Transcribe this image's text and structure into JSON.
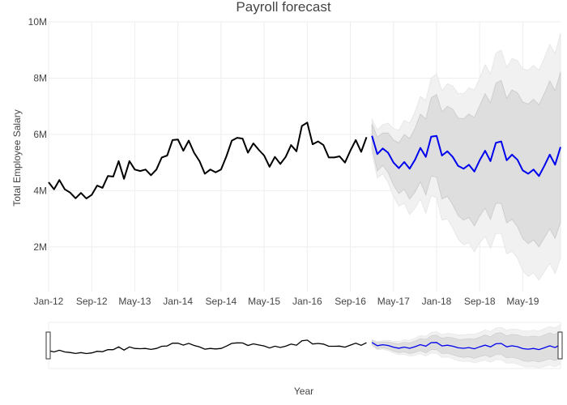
{
  "chart_data": {
    "type": "line",
    "title": "Payroll forecast",
    "xlabel": "Year",
    "ylabel": "Total Employee Salary",
    "x_ticks": [
      "Jan-12",
      "Sep-12",
      "May-13",
      "Jan-14",
      "Sep-14",
      "May-15",
      "Jan-16",
      "Sep-16",
      "May-17",
      "Jan-18",
      "Sep-18",
      "May-19"
    ],
    "y_ticks": [
      "2M",
      "4M",
      "6M",
      "8M",
      "10M"
    ],
    "ylim": [
      0.7,
      10
    ],
    "x_start": "2012-01",
    "grid": true,
    "range_slider": true,
    "colors": {
      "actual": "#000000",
      "forecast": "#0000ee",
      "band_inner": "#dedede",
      "band_outer": "#f1f1f1"
    },
    "series": [
      {
        "role": "actual",
        "values": [
          4.3,
          4.05,
          4.38,
          4.05,
          3.93,
          3.73,
          3.92,
          3.72,
          3.85,
          4.18,
          4.1,
          4.52,
          4.5,
          5.05,
          4.42,
          5.05,
          4.75,
          4.7,
          4.75,
          4.55,
          4.75,
          5.18,
          5.25,
          5.8,
          5.82,
          5.42,
          5.78,
          5.35,
          5.05,
          4.6,
          4.75,
          4.65,
          4.75,
          5.22,
          5.78,
          5.88,
          5.85,
          5.35,
          5.68,
          5.45,
          5.25,
          4.85,
          5.2,
          4.95,
          5.2,
          5.62,
          5.4,
          6.3,
          6.42,
          5.65,
          5.75,
          5.62,
          5.18,
          5.18,
          5.22,
          5.0,
          5.42,
          5.8,
          5.38,
          5.9
        ]
      },
      {
        "role": "forecast",
        "values": [
          5.95,
          5.3,
          5.5,
          5.35,
          5.0,
          4.8,
          5.02,
          4.78,
          5.1,
          5.52,
          5.2,
          5.92,
          5.95,
          5.25,
          5.4,
          5.2,
          4.88,
          4.78,
          4.92,
          4.68,
          5.08,
          5.42,
          5.05,
          5.7,
          5.75,
          5.08,
          5.28,
          5.1,
          4.72,
          4.6,
          4.75,
          4.52,
          4.88,
          5.28,
          4.92,
          5.55
        ],
        "band_inner_upper": [
          6.38,
          5.9,
          6.05,
          6.05,
          5.8,
          5.7,
          6.0,
          5.85,
          6.22,
          6.72,
          6.55,
          7.3,
          7.42,
          6.8,
          7.0,
          6.9,
          6.58,
          6.55,
          6.72,
          6.6,
          7.02,
          7.45,
          7.12,
          7.82,
          7.92,
          7.28,
          7.58,
          7.48,
          7.15,
          7.08,
          7.25,
          7.05,
          7.45,
          7.9,
          7.55,
          8.22
        ],
        "band_inner_lower": [
          5.55,
          4.7,
          4.9,
          4.65,
          4.2,
          3.9,
          4.05,
          3.7,
          3.95,
          4.32,
          3.85,
          4.52,
          4.48,
          3.7,
          3.8,
          3.5,
          3.12,
          2.95,
          3.05,
          2.75,
          3.1,
          3.38,
          2.98,
          3.55,
          3.55,
          2.85,
          2.98,
          2.72,
          2.3,
          2.12,
          2.25,
          2.0,
          2.32,
          2.65,
          2.3,
          2.88
        ],
        "band_outer_upper": [
          6.55,
          6.15,
          6.35,
          6.4,
          6.2,
          6.15,
          6.5,
          6.4,
          6.8,
          7.35,
          7.2,
          8.0,
          8.15,
          7.55,
          7.8,
          7.72,
          7.45,
          7.45,
          7.65,
          7.58,
          8.0,
          8.48,
          8.15,
          8.88,
          9.0,
          8.38,
          8.7,
          8.62,
          8.32,
          8.28,
          8.45,
          8.28,
          8.72,
          9.2,
          8.88,
          9.6
        ],
        "band_outer_lower": [
          5.35,
          4.45,
          4.6,
          4.3,
          3.8,
          3.45,
          3.55,
          3.15,
          3.38,
          3.7,
          3.2,
          3.82,
          3.75,
          2.95,
          3.0,
          2.68,
          2.28,
          2.08,
          2.15,
          1.82,
          2.15,
          2.38,
          1.95,
          2.48,
          2.48,
          1.75,
          1.85,
          1.6,
          1.15,
          0.95,
          1.08,
          0.82,
          1.12,
          1.42,
          1.05,
          1.6
        ]
      }
    ]
  }
}
